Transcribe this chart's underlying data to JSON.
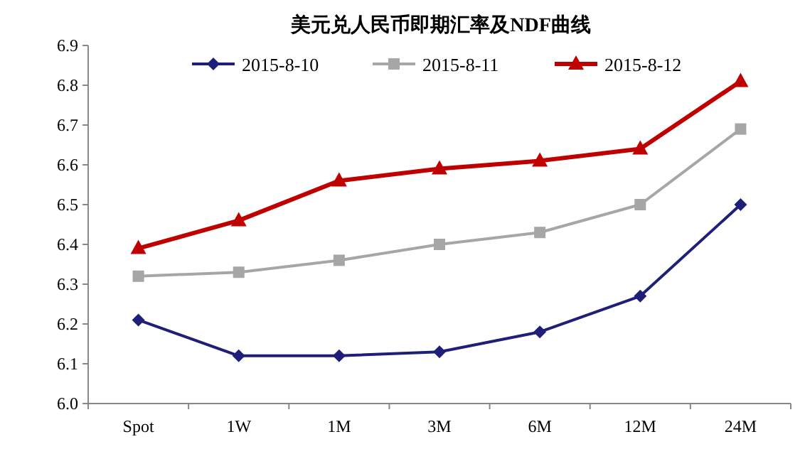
{
  "chart_data": {
    "type": "line",
    "title": "美元兑人民币即期汇率及NDF曲线",
    "categories": [
      "Spot",
      "1W",
      "1M",
      "3M",
      "6M",
      "12M",
      "24M"
    ],
    "series": [
      {
        "name": "2015-8-10",
        "color": "#1f1f7a",
        "marker": "diamond",
        "values": [
          6.21,
          6.12,
          6.12,
          6.13,
          6.18,
          6.27,
          6.5
        ]
      },
      {
        "name": "2015-8-11",
        "color": "#a6a6a6",
        "marker": "square",
        "values": [
          6.32,
          6.33,
          6.36,
          6.4,
          6.43,
          6.5,
          6.69
        ]
      },
      {
        "name": "2015-8-12",
        "color": "#c00000",
        "marker": "triangle",
        "values": [
          6.39,
          6.46,
          6.56,
          6.59,
          6.61,
          6.64,
          6.81
        ]
      }
    ],
    "ylim": [
      6.0,
      6.9
    ],
    "yticks": [
      {
        "value": 6.0,
        "label": "6.0"
      },
      6.1,
      6.2,
      6.3,
      6.4,
      6.5,
      6.6,
      6.7,
      6.8,
      6.9
    ],
    "grid": false,
    "legend": "top"
  }
}
